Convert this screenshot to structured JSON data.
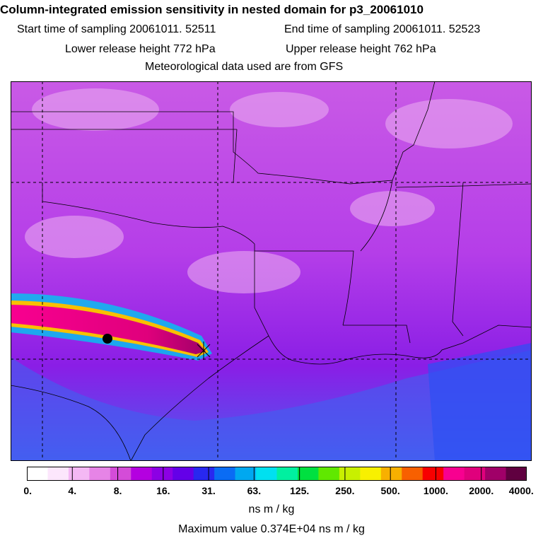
{
  "header": {
    "title": "Column-integrated emission sensitivity in nested domain for p3_20061010",
    "start_label": "Start time of sampling 20061011. 52511",
    "end_label": "End time of sampling 20061011. 52523",
    "lower_label": "Lower release height  772 hPa",
    "upper_label": "Upper release height  762 hPa",
    "met_label": "Meteorological data used are from GFS"
  },
  "colorbar": {
    "colors": [
      "#ffffff",
      "#fce6fc",
      "#f4b8f4",
      "#e684e6",
      "#d44cd8",
      "#b400e0",
      "#8c00e4",
      "#6400e8",
      "#2828f0",
      "#0a6cf4",
      "#00a8f0",
      "#00e0f0",
      "#00f0a0",
      "#00e040",
      "#60e800",
      "#c8f000",
      "#f8f000",
      "#f8b000",
      "#f86000",
      "#f80000",
      "#f80090",
      "#e0007c",
      "#a00068",
      "#600040"
    ],
    "ticks": [
      "0.",
      "4.",
      "8.",
      "16.",
      "31.",
      "63.",
      "125.",
      "250.",
      "500.",
      "1000.",
      "2000.",
      "4000."
    ],
    "unit": "ns m / kg"
  },
  "footer": {
    "max_value": "Maximum value  0.374E+04 ns m / kg"
  }
}
